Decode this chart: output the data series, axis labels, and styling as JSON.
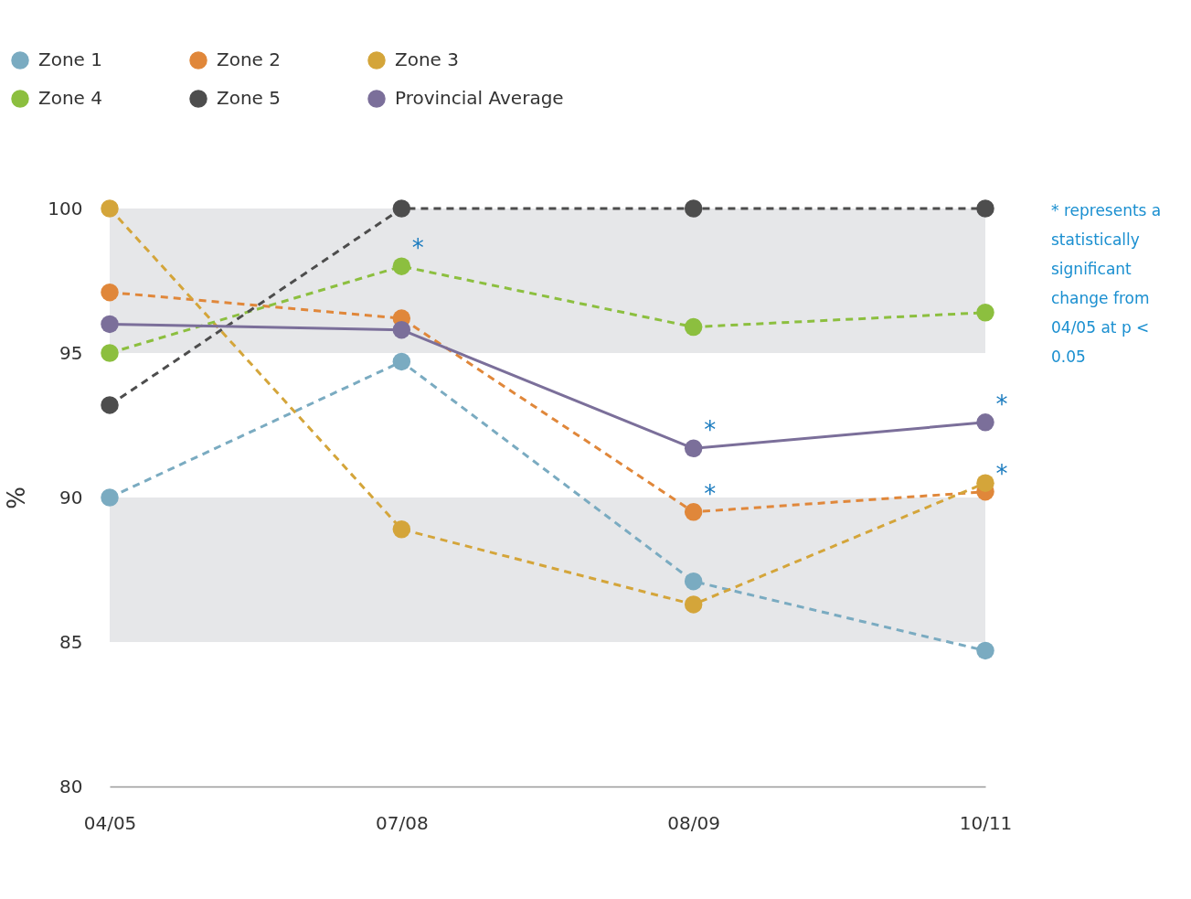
{
  "chart_data": {
    "type": "line",
    "categories": [
      "04/05",
      "07/08",
      "08/09",
      "10/11"
    ],
    "ylabel": "%",
    "ylim": [
      80,
      100
    ],
    "yticks": [
      80,
      85,
      90,
      95,
      100
    ],
    "grid": false,
    "legend": "top left",
    "marker": "circle",
    "series": [
      {
        "name": "Zone 1",
        "color": "#7aabc1",
        "line_style": "dashed",
        "values": [
          90.0,
          94.7,
          87.1,
          84.7
        ]
      },
      {
        "name": "Zone 2",
        "color": "#e0873a",
        "line_style": "dashed",
        "values": [
          97.1,
          96.2,
          89.5,
          90.2
        ]
      },
      {
        "name": "Zone 3",
        "color": "#d4a53a",
        "line_style": "dashed",
        "values": [
          100,
          88.9,
          86.3,
          90.5
        ]
      },
      {
        "name": "Zone 4",
        "color": "#8cbf3f",
        "line_style": "dashed",
        "values": [
          95.0,
          98.0,
          95.9,
          96.4
        ]
      },
      {
        "name": "Zone 5",
        "color": "#4d4d4d",
        "line_style": "dashed",
        "values": [
          93.2,
          100,
          100,
          100
        ]
      },
      {
        "name": "Provincial Average",
        "color": "#7b6f9a",
        "line_style": "solid",
        "values": [
          96.0,
          95.8,
          91.7,
          92.6
        ]
      }
    ],
    "bands": [
      {
        "axis": "y",
        "from": 95,
        "to": 100,
        "color": "#e6e7e9"
      },
      {
        "axis": "y",
        "from": 85,
        "to": 90,
        "color": "#e6e7e9"
      }
    ],
    "annotations": [
      {
        "text": "*",
        "x": "07/08",
        "y": 98.0
      },
      {
        "text": "*",
        "x": "08/09",
        "y": 91.7
      },
      {
        "text": "*",
        "x": "08/09",
        "y": 89.5
      },
      {
        "text": "*",
        "x": "10/11",
        "y": 92.6
      },
      {
        "text": "*",
        "x": "10/11",
        "y": 90.2
      },
      "* represents a statistically significant change from 04/05 at p < 0.05"
    ]
  }
}
